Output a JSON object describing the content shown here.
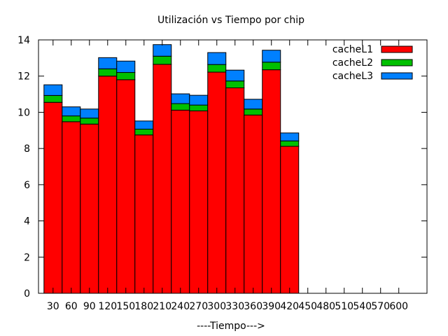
{
  "chart_data": {
    "type": "bar",
    "stacked": true,
    "title": "Utilización vs Tiempo por chip",
    "xlabel": "----Tiempo--->",
    "ylabel": "",
    "ylim": [
      0,
      14
    ],
    "yticks": [
      0,
      2,
      4,
      6,
      8,
      10,
      12,
      14
    ],
    "grid": false,
    "legend": "top-right",
    "categories": [
      "30",
      "60",
      "90",
      "120",
      "150",
      "180",
      "210",
      "240",
      "270",
      "300",
      "330",
      "360",
      "390",
      "420",
      "450",
      "480",
      "510",
      "540",
      "570",
      "600"
    ],
    "series": [
      {
        "name": "cacheL1",
        "color": "#ff0000",
        "values": [
          10.55,
          9.48,
          9.35,
          12.0,
          11.8,
          8.75,
          12.65,
          10.12,
          10.08,
          12.22,
          11.35,
          9.85,
          12.35,
          8.12,
          0,
          0,
          0,
          0,
          0,
          0
        ]
      },
      {
        "name": "cacheL2",
        "color": "#00c000",
        "values": [
          0.38,
          0.32,
          0.33,
          0.4,
          0.4,
          0.32,
          0.45,
          0.36,
          0.32,
          0.42,
          0.38,
          0.33,
          0.42,
          0.3,
          0,
          0,
          0,
          0,
          0,
          0
        ]
      },
      {
        "name": "cacheL3",
        "color": "#0080ff",
        "values": [
          0.59,
          0.5,
          0.5,
          0.62,
          0.63,
          0.45,
          0.64,
          0.54,
          0.54,
          0.66,
          0.6,
          0.54,
          0.66,
          0.44,
          0,
          0,
          0,
          0,
          0,
          0
        ]
      }
    ]
  }
}
